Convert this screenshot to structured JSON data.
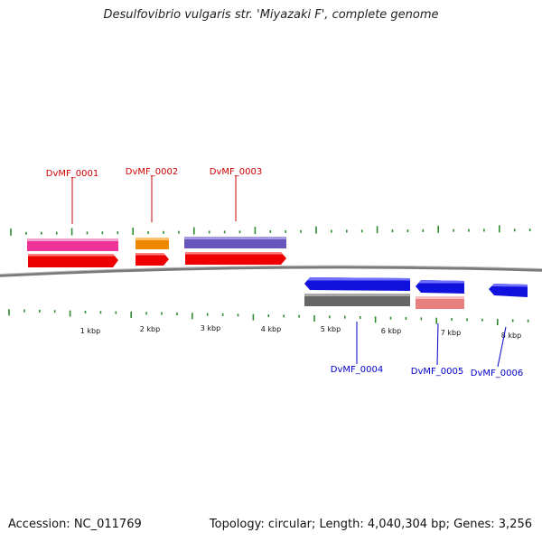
{
  "title": "Desulfovibrio vulgaris str. 'Miyazaki F', complete genome",
  "footer": {
    "accession": "Accession: NC_011769",
    "summary": "Topology: circular; Length: 4,040,304 bp; Genes: 3,256"
  },
  "colors": {
    "forward_label": "#cc0000",
    "reverse_label": "#0000cc",
    "tick": "#2e8b2e",
    "backbone": "#808080"
  },
  "scale_labels": [
    "1 kbp",
    "2 kbp",
    "3 kbp",
    "4 kbp",
    "5 kbp",
    "6 kbp",
    "7 kbp",
    "8 kbp"
  ],
  "genes": [
    {
      "name": "DvMF_0001",
      "strand": "forward",
      "gene_color": "#ee0000",
      "product_color": "#ee3399"
    },
    {
      "name": "DvMF_0002",
      "strand": "forward",
      "gene_color": "#ee0000",
      "product_color": "#ee8800"
    },
    {
      "name": "DvMF_0003",
      "strand": "forward",
      "gene_color": "#ee0000",
      "product_color": "#6655bb"
    },
    {
      "name": "DvMF_0004",
      "strand": "reverse",
      "gene_color": "#1111dd",
      "product_color": "#666666"
    },
    {
      "name": "DvMF_0005",
      "strand": "reverse",
      "gene_color": "#1111dd",
      "product_color": "#e88080"
    },
    {
      "name": "DvMF_0006",
      "strand": "reverse",
      "gene_color": "#1111dd",
      "product_color": ""
    }
  ]
}
